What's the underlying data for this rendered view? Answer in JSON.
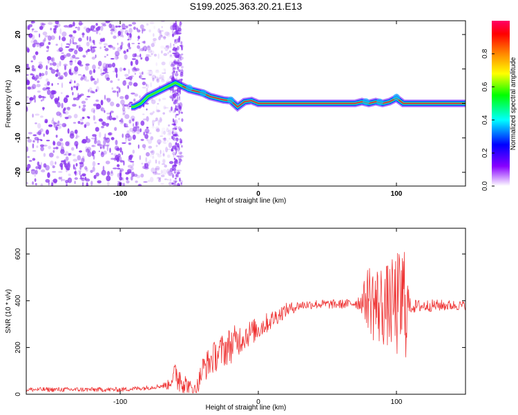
{
  "title": "S199.2025.363.20.21.E13",
  "colors": {
    "snr_line": "#ee3333",
    "ridge": "#dd2255",
    "scatter": "#8833ee"
  },
  "chart_data": [
    {
      "type": "heatmap",
      "name": "spectrogram",
      "xlabel": "Height of straight line (km)",
      "ylabel": "Frequency (Hz)",
      "xlim": [
        -168,
        150
      ],
      "ylim": [
        -24,
        24
      ],
      "x_ticks": [
        -100,
        0,
        100
      ],
      "x_tick_labels": [
        "-100",
        "0",
        "100"
      ],
      "y_ticks": [
        -20,
        -10,
        0,
        10,
        20
      ],
      "y_tick_labels": [
        "-20",
        "-10",
        "0",
        "10",
        "20"
      ],
      "colorbar": {
        "label": "Normalized spectral amplitude",
        "range": [
          0,
          1
        ],
        "ticks": [
          0.0,
          0.2,
          0.4,
          0.6,
          0.8
        ],
        "tick_labels": [
          "0.0",
          "0.2",
          "0.4",
          "0.6",
          "0.8"
        ],
        "colors": [
          "#ffffff",
          "#8800ff",
          "#0000ff",
          "#00ffff",
          "#00ff00",
          "#ffff00",
          "#ff8800",
          "#ff0000",
          "#ff0066"
        ]
      },
      "ridge": {
        "x": [
          -90,
          -85,
          -80,
          -75,
          -70,
          -65,
          -60,
          -55,
          -50,
          -45,
          -40,
          -35,
          -30,
          -25,
          -20,
          -15,
          -10,
          -5,
          0,
          40,
          70,
          75,
          80,
          85,
          90,
          95,
          100,
          105,
          110,
          150
        ],
        "y": [
          -1,
          0,
          2,
          3,
          4,
          5,
          6,
          5,
          4,
          3.5,
          3,
          2,
          1.5,
          1,
          0.8,
          -1,
          0.5,
          0.8,
          0,
          0,
          0,
          0.5,
          0,
          0.5,
          0,
          0.5,
          1.5,
          0,
          0,
          0
        ]
      }
    },
    {
      "type": "line",
      "name": "snr",
      "xlabel": "Height of straight line (km)",
      "ylabel": "SNR (10 * v/v)",
      "xlim": [
        -168,
        150
      ],
      "ylim": [
        0,
        710
      ],
      "x_ticks": [
        -100,
        0,
        100
      ],
      "x_tick_labels": [
        "-100",
        "0",
        "100"
      ],
      "y_ticks": [
        0,
        200,
        400,
        600
      ],
      "y_tick_labels": [
        "0",
        "200",
        "400",
        "600"
      ],
      "envelope": {
        "x": [
          -168,
          -100,
          -80,
          -65,
          -60,
          -55,
          -50,
          -45,
          -40,
          -30,
          -20,
          -10,
          0,
          10,
          20,
          25,
          30,
          40,
          50,
          60,
          70,
          75,
          80,
          85,
          90,
          95,
          100,
          103,
          105,
          107,
          110,
          120,
          130,
          150
        ],
        "y": [
          20,
          20,
          28,
          40,
          90,
          60,
          25,
          20,
          110,
          170,
          210,
          250,
          280,
          320,
          360,
          370,
          380,
          385,
          385,
          385,
          390,
          395,
          420,
          380,
          380,
          380,
          380,
          380,
          400,
          390,
          375,
          378,
          380,
          380
        ]
      },
      "noise_amplitude": {
        "x": [
          -168,
          -70,
          -62,
          -58,
          -52,
          -45,
          -40,
          -30,
          -20,
          -10,
          0,
          10,
          20,
          30,
          70,
          75,
          80,
          85,
          90,
          95,
          100,
          103,
          106,
          108,
          110,
          150
        ],
        "y": [
          10,
          10,
          30,
          80,
          40,
          30,
          60,
          70,
          80,
          60,
          50,
          40,
          30,
          20,
          20,
          50,
          150,
          180,
          180,
          180,
          230,
          240,
          300,
          150,
          30,
          20
        ]
      }
    }
  ]
}
